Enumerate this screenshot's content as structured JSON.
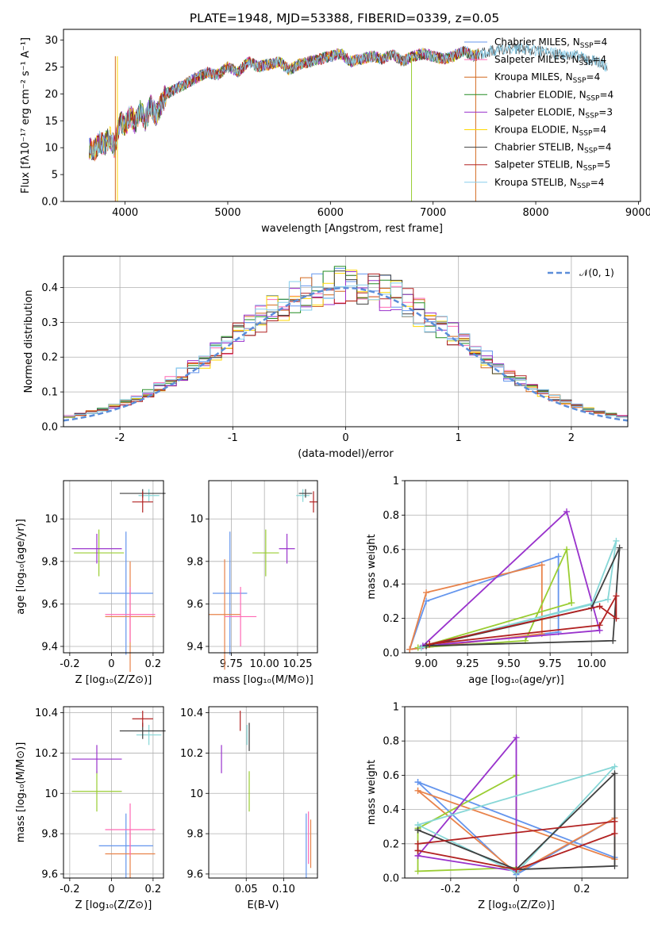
{
  "title": "PLATE=1948, MJD=53388, FIBERID=0339, z=0.05",
  "colors": [
    "#6495ED",
    "#FF69B4",
    "#D2691E",
    "#228B22",
    "#9932CC",
    "#FFD700",
    "#404040",
    "#B22222",
    "#87CEEB"
  ],
  "pair_colors": [
    "#6495ED",
    "#E8824A",
    "#9ACD32",
    "#9932CC",
    "#87D7D7",
    "#404040",
    "#B22222",
    "#FF69B4"
  ],
  "legend": [
    {
      "name": "Chabrier MILES",
      "nssp": "4",
      "color": "#6495ED"
    },
    {
      "name": "Salpeter MILES",
      "nssp": "4",
      "color": "#FF69B4"
    },
    {
      "name": "Kroupa MILES",
      "nssp": "4",
      "color": "#D2691E"
    },
    {
      "name": "Chabrier ELODIE",
      "nssp": "4",
      "color": "#228B22"
    },
    {
      "name": "Salpeter ELODIE",
      "nssp": "3",
      "color": "#9932CC"
    },
    {
      "name": "Kroupa ELODIE",
      "nssp": "4",
      "color": "#FFD700"
    },
    {
      "name": "Chabrier STELIB",
      "nssp": "4",
      "color": "#404040"
    },
    {
      "name": "Salpeter STELIB",
      "nssp": "5",
      "color": "#B22222"
    },
    {
      "name": "Kroupa STELIB",
      "nssp": "4",
      "color": "#87CEEB"
    }
  ],
  "chart_data": [
    {
      "type": "line",
      "xlabel": "wavelength [Angstrom, rest frame]",
      "ylabel": "Flux [fλ10⁻¹⁷ erg cm⁻² s⁻¹ A⁻¹]",
      "xlim": [
        3400,
        9020
      ],
      "ylim": [
        0,
        32
      ],
      "xticks": [
        4000,
        5000,
        6000,
        7000,
        8000,
        9000
      ],
      "yticks": [
        0,
        5,
        10,
        15,
        20,
        25,
        30
      ],
      "spectrum_x": [
        3650,
        3700,
        3750,
        3800,
        3850,
        3900,
        3950,
        4000,
        4050,
        4100,
        4150,
        4200,
        4250,
        4300,
        4400,
        4500,
        4600,
        4700,
        4800,
        4900,
        5000,
        5100,
        5200,
        5300,
        5400,
        5500,
        5600,
        5700,
        5800,
        5900,
        6000,
        6100,
        6200,
        6300,
        6400,
        6500,
        6600,
        6700,
        6800,
        6900,
        7000,
        7100,
        7200,
        7300,
        7400,
        7450
      ],
      "spectrum_y": [
        10,
        9.5,
        11,
        10.5,
        12,
        10,
        15,
        14,
        16,
        14.5,
        17,
        15,
        18,
        16,
        20,
        21,
        22,
        23,
        24,
        23.5,
        25,
        24,
        26,
        25,
        25.5,
        26,
        24.5,
        25.5,
        26,
        26.5,
        27,
        27.5,
        26,
        26.5,
        27,
        26.5,
        27.5,
        26,
        27,
        27.5,
        27,
        26.5,
        27,
        28,
        27,
        27.5
      ],
      "note_x": [
        7450,
        7600,
        7800,
        8000,
        8200,
        8400,
        8600,
        8700
      ],
      "note_y": [
        27.5,
        28,
        28.5,
        28,
        27.5,
        27,
        26,
        25
      ]
    },
    {
      "type": "bar",
      "xlabel": "(data-model)/error",
      "ylabel": "Normed distribution",
      "xlim": [
        -2.5,
        2.5
      ],
      "ylim": [
        0,
        0.49
      ],
      "xticks": [
        -2,
        -1,
        0,
        1,
        2
      ],
      "yticks": [
        0.0,
        0.1,
        0.2,
        0.3,
        0.4
      ],
      "legend_label": "𝒩(0, 1)"
    },
    {
      "type": "scatter",
      "xlabel": "Z [log₁₀(Z/Z⊙)]",
      "ylabel": "age  [log₁₀(age/yr)]",
      "xlim": [
        -0.23,
        0.25
      ],
      "ylim": [
        9.37,
        10.18
      ],
      "xticks": [
        -0.2,
        0.0,
        0.2
      ],
      "yticks": [
        9.4,
        9.6,
        9.8,
        10.0
      ],
      "points": [
        {
          "x": 0.07,
          "y": 9.65,
          "ex": 0.13,
          "ey": 0.29
        },
        {
          "x": 0.09,
          "y": 9.54,
          "ex": 0.12,
          "ey": 0.26
        },
        {
          "x": -0.06,
          "y": 9.84,
          "ex": 0.12,
          "ey": 0.11
        },
        {
          "x": -0.07,
          "y": 9.86,
          "ex": 0.12,
          "ey": 0.07
        },
        {
          "x": 0.18,
          "y": 10.11,
          "ex": 0.05,
          "ey": 0.03
        },
        {
          "x": 0.15,
          "y": 10.12,
          "ex": 0.11,
          "ey": 0.02
        },
        {
          "x": 0.15,
          "y": 10.08,
          "ex": 0.05,
          "ey": 0.05
        },
        {
          "x": 0.09,
          "y": 9.55,
          "ex": 0.12,
          "ey": 0.13
        }
      ]
    },
    {
      "type": "scatter",
      "xlabel": "mass [log₁₀(M/M⊙)]",
      "ylabel": "",
      "xlim": [
        9.58,
        10.4
      ],
      "ylim": [
        9.37,
        10.18
      ],
      "xticks": [
        9.75,
        10.0,
        10.25
      ],
      "xtick_labels": [
        "9.75",
        "10.00",
        "10.25"
      ],
      "yticks": [
        9.4,
        9.6,
        9.8,
        10.0
      ],
      "points": [
        {
          "x": 9.74,
          "y": 9.65,
          "ex": 0.13,
          "ey": 0.29
        },
        {
          "x": 9.7,
          "y": 9.55,
          "ex": 0.12,
          "ey": 0.26
        },
        {
          "x": 10.01,
          "y": 9.84,
          "ex": 0.1,
          "ey": 0.11
        },
        {
          "x": 10.17,
          "y": 9.86,
          "ex": 0.06,
          "ey": 0.07
        },
        {
          "x": 10.29,
          "y": 10.11,
          "ex": 0.05,
          "ey": 0.03
        },
        {
          "x": 10.31,
          "y": 10.12,
          "ex": 0.05,
          "ey": 0.02
        },
        {
          "x": 10.37,
          "y": 10.08,
          "ex": 0.03,
          "ey": 0.05
        },
        {
          "x": 9.82,
          "y": 9.54,
          "ex": 0.12,
          "ey": 0.14
        }
      ]
    },
    {
      "type": "line",
      "xlabel": "age  [log₁₀(age/yr)]",
      "ylabel": "mass weight",
      "xlim": [
        8.87,
        10.22
      ],
      "ylim": [
        0,
        1.0
      ],
      "xticks": [
        9.0,
        9.25,
        9.5,
        9.75,
        10.0
      ],
      "xtick_labels": [
        "9.00",
        "9.25",
        "9.50",
        "9.75",
        "10.00"
      ],
      "yticks": [
        0.0,
        0.2,
        0.4,
        0.6,
        0.8,
        1.0
      ],
      "series": [
        {
          "x": [
            8.9,
            9.0,
            9.8,
            9.8,
            8.9
          ],
          "y": [
            0.02,
            0.3,
            0.56,
            0.12,
            0.02
          ]
        },
        {
          "x": [
            8.9,
            9.0,
            9.7,
            9.7,
            8.9
          ],
          "y": [
            0.02,
            0.35,
            0.51,
            0.11,
            0.02
          ]
        },
        {
          "x": [
            8.95,
            9.6,
            9.85,
            9.88,
            8.95
          ],
          "y": [
            0.03,
            0.07,
            0.6,
            0.29,
            0.03
          ]
        },
        {
          "x": [
            8.98,
            9.85,
            10.05,
            8.98
          ],
          "y": [
            0.04,
            0.82,
            0.13,
            0.04
          ]
        },
        {
          "x": [
            8.97,
            10.1,
            10.15,
            10.0,
            8.97
          ],
          "y": [
            0.03,
            0.31,
            0.65,
            0.28,
            0.03
          ]
        },
        {
          "x": [
            9.0,
            10.13,
            10.17,
            10.0,
            9.0
          ],
          "y": [
            0.04,
            0.07,
            0.61,
            0.26,
            0.04
          ]
        },
        {
          "x": [
            9.02,
            10.05,
            10.15,
            10.15,
            10.05,
            9.02
          ],
          "y": [
            0.05,
            0.16,
            0.33,
            0.2,
            0.27,
            0.05
          ]
        }
      ]
    },
    {
      "type": "scatter",
      "xlabel": "Z [log₁₀(Z/Z⊙)]",
      "ylabel": "mass [log₁₀(M/M⊙)]",
      "xlim": [
        -0.23,
        0.25
      ],
      "ylim": [
        9.58,
        10.43
      ],
      "xticks": [
        -0.2,
        0.0,
        0.2
      ],
      "yticks": [
        9.6,
        9.8,
        10.0,
        10.2,
        10.4
      ],
      "points": [
        {
          "x": 0.07,
          "y": 9.74,
          "ex": 0.13,
          "ey": 0.16
        },
        {
          "x": 0.09,
          "y": 9.7,
          "ex": 0.12,
          "ey": 0.12
        },
        {
          "x": -0.07,
          "y": 10.01,
          "ex": 0.12,
          "ey": 0.1
        },
        {
          "x": -0.07,
          "y": 10.17,
          "ex": 0.12,
          "ey": 0.07
        },
        {
          "x": 0.18,
          "y": 10.29,
          "ex": 0.06,
          "ey": 0.05
        },
        {
          "x": 0.15,
          "y": 10.31,
          "ex": 0.11,
          "ey": 0.04
        },
        {
          "x": 0.15,
          "y": 10.37,
          "ex": 0.05,
          "ey": 0.04
        },
        {
          "x": 0.09,
          "y": 9.82,
          "ex": 0.12,
          "ey": 0.13
        }
      ]
    },
    {
      "type": "scatter",
      "xlabel": "E(B-V)",
      "ylabel": "",
      "xlim": [
        0.0,
        0.145
      ],
      "ylim": [
        9.58,
        10.43
      ],
      "xticks": [
        0.05,
        0.1
      ],
      "xtick_labels": [
        "0.05",
        "0.10"
      ],
      "yticks": [
        9.6,
        9.8,
        10.0,
        10.2,
        10.4
      ],
      "points": [
        {
          "x": 0.13,
          "y": 9.74,
          "ex": 0.0,
          "ey": 0.16
        },
        {
          "x": 0.136,
          "y": 9.75,
          "ex": 0.0,
          "ey": 0.12
        },
        {
          "x": 0.054,
          "y": 10.01,
          "ex": 0.0,
          "ey": 0.1
        },
        {
          "x": 0.017,
          "y": 10.17,
          "ex": 0.0,
          "ey": 0.07
        },
        {
          "x": 0.051,
          "y": 10.29,
          "ex": 0.0,
          "ey": 0.05
        },
        {
          "x": 0.054,
          "y": 10.28,
          "ex": 0.0,
          "ey": 0.07
        },
        {
          "x": 0.042,
          "y": 10.36,
          "ex": 0.0,
          "ey": 0.05
        },
        {
          "x": 0.133,
          "y": 9.78,
          "ex": 0.0,
          "ey": 0.13
        }
      ]
    },
    {
      "type": "line",
      "xlabel": "Z [log₁₀(Z/Z⊙)]",
      "ylabel": "mass weight",
      "xlim": [
        -0.34,
        0.34
      ],
      "ylim": [
        0,
        1.0
      ],
      "xticks": [
        -0.2,
        0.0,
        0.2
      ],
      "yticks": [
        0.0,
        0.2,
        0.4,
        0.6,
        0.8,
        1.0
      ],
      "series": [
        {
          "x": [
            -0.3,
            0.0,
            0.3,
            0.3,
            -0.3
          ],
          "y": [
            0.56,
            0.02,
            0.35,
            0.12,
            0.56
          ]
        },
        {
          "x": [
            -0.3,
            0.0,
            0.3,
            0.3,
            -0.3
          ],
          "y": [
            0.51,
            0.03,
            0.35,
            0.11,
            0.51
          ]
        },
        {
          "x": [
            -0.3,
            0.0,
            0.0,
            -0.3,
            -0.3
          ],
          "y": [
            0.29,
            0.6,
            0.06,
            0.04,
            0.29
          ]
        },
        {
          "x": [
            -0.3,
            0.0,
            0.0,
            -0.3
          ],
          "y": [
            0.13,
            0.82,
            0.04,
            0.13
          ]
        },
        {
          "x": [
            -0.3,
            0.0,
            0.3,
            -0.3
          ],
          "y": [
            0.31,
            0.03,
            0.65,
            0.31
          ]
        },
        {
          "x": [
            -0.3,
            0.0,
            0.3,
            0.3,
            0.0,
            -0.3
          ],
          "y": [
            0.28,
            0.05,
            0.61,
            0.07,
            0.05,
            0.28
          ]
        },
        {
          "x": [
            -0.3,
            0.0,
            0.3,
            0.3,
            -0.3,
            -0.3
          ],
          "y": [
            0.16,
            0.05,
            0.26,
            0.33,
            0.2,
            0.16
          ]
        }
      ]
    }
  ]
}
